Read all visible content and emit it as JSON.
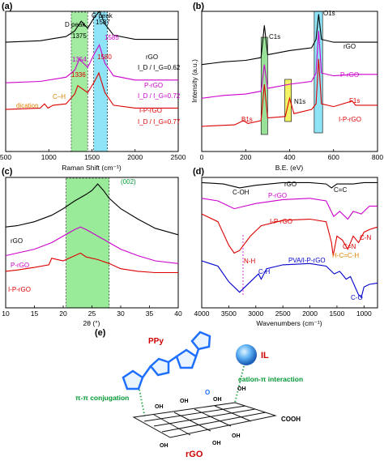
{
  "chart_data": [
    {
      "panel": "(a)",
      "type": "line",
      "xlabel": "Raman Shift (cm⁻¹)",
      "ylabel": "",
      "xlim": [
        500,
        2500
      ],
      "xticks": [
        500,
        1000,
        1500,
        2000,
        2500
      ],
      "series": [
        {
          "name": "rGO",
          "color": "#000000",
          "x": [
            500,
            900,
            1200,
            1300,
            1375,
            1450,
            1520,
            1587,
            1650,
            1750,
            2000,
            2500
          ],
          "y": [
            0.78,
            0.79,
            0.82,
            0.86,
            0.93,
            0.88,
            0.95,
            1.0,
            0.91,
            0.83,
            0.8,
            0.8
          ]
        },
        {
          "name": "P-rGO",
          "color": "#cc00cc",
          "x": [
            500,
            900,
            1200,
            1300,
            1354,
            1450,
            1530,
            1585,
            1650,
            1750,
            2000,
            2500
          ],
          "y": [
            0.49,
            0.5,
            0.53,
            0.58,
            0.66,
            0.6,
            0.7,
            0.76,
            0.63,
            0.54,
            0.51,
            0.51
          ]
        },
        {
          "name": "I-P-rGO",
          "color": "#dd0000",
          "x": [
            500,
            900,
            950,
            990,
            1050,
            1200,
            1300,
            1336,
            1450,
            1530,
            1580,
            1650,
            1750,
            2000,
            2500
          ],
          "y": [
            0.3,
            0.31,
            0.34,
            0.31,
            0.33,
            0.34,
            0.41,
            0.47,
            0.42,
            0.5,
            0.56,
            0.42,
            0.33,
            0.31,
            0.31
          ]
        }
      ],
      "series_labels": [
        "rGO",
        "P-rGO",
        "I-P-rGO"
      ],
      "ratio_labels": [
        "I_D / I_G=0.62",
        "I_D / I_G=0.72",
        "I_D / I_G=0.77"
      ],
      "annotations": [
        "D peak",
        "G peak",
        "1375",
        "1587",
        "1354",
        "1585",
        "1336",
        "1580",
        "C–H",
        "dication"
      ],
      "highlight_regions": [
        {
          "x": [
            1260,
            1450
          ],
          "color": "#55dd55"
        },
        {
          "x": [
            1520,
            1680
          ],
          "color": "#33ccee"
        }
      ]
    },
    {
      "panel": "(b)",
      "type": "line",
      "xlabel": "B.E. (eV)",
      "ylabel": "Intensity (a.u.)",
      "xlim": [
        0,
        800
      ],
      "xticks": [
        0,
        200,
        400,
        600,
        800
      ],
      "series": [
        {
          "name": "rGO",
          "color": "#000000",
          "x": [
            0,
            50,
            100,
            200,
            270,
            285,
            300,
            400,
            500,
            520,
            532,
            545,
            600,
            700,
            800
          ],
          "y": [
            0.62,
            0.63,
            0.64,
            0.65,
            0.67,
            0.9,
            0.69,
            0.72,
            0.74,
            0.8,
            0.98,
            0.8,
            0.78,
            0.78,
            0.78
          ]
        },
        {
          "name": "P-rGO",
          "color": "#cc00cc",
          "x": [
            0,
            50,
            100,
            200,
            270,
            285,
            300,
            400,
            500,
            520,
            532,
            545,
            600,
            700,
            800
          ],
          "y": [
            0.38,
            0.39,
            0.4,
            0.41,
            0.43,
            0.62,
            0.45,
            0.48,
            0.5,
            0.56,
            0.86,
            0.56,
            0.54,
            0.55,
            0.55
          ]
        },
        {
          "name": "I-P-rGO",
          "color": "#dd0000",
          "x": [
            0,
            150,
            190,
            210,
            270,
            285,
            300,
            380,
            400,
            420,
            500,
            520,
            532,
            545,
            600,
            685,
            700,
            800
          ],
          "y": [
            0.18,
            0.19,
            0.22,
            0.2,
            0.22,
            0.48,
            0.24,
            0.25,
            0.38,
            0.27,
            0.3,
            0.34,
            0.66,
            0.34,
            0.32,
            0.36,
            0.33,
            0.33
          ]
        }
      ],
      "series_labels": [
        "rGO",
        "P-rGO",
        "I-P-rGO"
      ],
      "annotations": [
        "C1s",
        "O1s",
        "N1s",
        "B1s",
        "F1s"
      ],
      "highlight_regions": [
        {
          "x": [
            270,
            300
          ],
          "color": "#55cc55"
        },
        {
          "x": [
            378,
            408
          ],
          "color": "#eeee33"
        },
        {
          "x": [
            512,
            550
          ],
          "color": "#33ccee"
        }
      ]
    },
    {
      "panel": "(c)",
      "type": "line",
      "xlabel": "2θ (°)",
      "ylabel": "",
      "xlim": [
        10,
        40
      ],
      "xticks": [
        10,
        15,
        20,
        25,
        30,
        35,
        40
      ],
      "series": [
        {
          "name": "rGO",
          "color": "#000000",
          "x": [
            10,
            12,
            15,
            18,
            20,
            22,
            24,
            25,
            26,
            27,
            28,
            30,
            33,
            36,
            40
          ],
          "y": [
            0.62,
            0.63,
            0.66,
            0.71,
            0.76,
            0.82,
            0.87,
            0.9,
            0.95,
            0.9,
            0.84,
            0.76,
            0.68,
            0.61,
            0.56
          ]
        },
        {
          "name": "P-rGO",
          "color": "#cc00cc",
          "x": [
            10,
            12,
            15,
            18,
            20,
            22,
            23,
            24,
            26,
            28,
            30,
            33,
            36,
            40
          ],
          "y": [
            0.4,
            0.42,
            0.45,
            0.5,
            0.55,
            0.6,
            0.62,
            0.6,
            0.55,
            0.5,
            0.45,
            0.4,
            0.36,
            0.34
          ]
        },
        {
          "name": "I-P-rGO",
          "color": "#dd0000",
          "x": [
            10,
            12,
            15,
            17.5,
            18,
            20,
            22,
            23,
            24,
            26,
            28,
            30,
            33,
            36,
            40
          ],
          "y": [
            0.28,
            0.29,
            0.31,
            0.33,
            0.38,
            0.36,
            0.4,
            0.42,
            0.39,
            0.37,
            0.34,
            0.3,
            0.28,
            0.27,
            0.27
          ]
        }
      ],
      "series_labels": [
        "rGO",
        "P-rGO",
        "I-P-rGO"
      ],
      "annotations": [
        "(002)"
      ],
      "highlight_regions": [
        {
          "x": [
            20.5,
            28
          ],
          "color": "#55dd55"
        }
      ]
    },
    {
      "panel": "(d)",
      "type": "line",
      "xlabel": "Wavenumbers (cm⁻¹)",
      "ylabel": "",
      "xlim": [
        4000,
        750
      ],
      "xticks": [
        4000,
        3500,
        3000,
        2500,
        2000,
        1500,
        1000
      ],
      "series": [
        {
          "name": "rGO",
          "color": "#000000",
          "x": [
            4000,
            3600,
            3300,
            3000,
            2500,
            2000,
            1700,
            1600,
            1500,
            1200,
            1000,
            750
          ],
          "y": [
            0.96,
            0.95,
            0.92,
            0.94,
            0.96,
            0.96,
            0.95,
            0.92,
            0.95,
            0.95,
            0.96,
            0.96
          ]
        },
        {
          "name": "P-rGO",
          "color": "#cc00cc",
          "x": [
            4000,
            3700,
            3400,
            3200,
            3000,
            2500,
            2000,
            1700,
            1560,
            1450,
            1300,
            1200,
            1050,
            900,
            750
          ],
          "y": [
            0.84,
            0.82,
            0.76,
            0.78,
            0.8,
            0.83,
            0.84,
            0.82,
            0.7,
            0.74,
            0.68,
            0.74,
            0.72,
            0.78,
            0.78
          ]
        },
        {
          "name": "I-P-rGO",
          "color": "#dd0000",
          "x": [
            4000,
            3700,
            3500,
            3400,
            3300,
            3100,
            2900,
            2500,
            2000,
            1700,
            1600,
            1570,
            1500,
            1400,
            1300,
            1200,
            1100,
            1000,
            900,
            750
          ],
          "y": [
            0.72,
            0.66,
            0.48,
            0.42,
            0.44,
            0.55,
            0.63,
            0.67,
            0.68,
            0.66,
            0.5,
            0.4,
            0.55,
            0.52,
            0.45,
            0.55,
            0.5,
            0.58,
            0.6,
            0.62
          ]
        },
        {
          "name": "PVA/I-P-rGO",
          "color": "#0000cc",
          "x": [
            4000,
            3700,
            3500,
            3300,
            3100,
            2950,
            2900,
            2800,
            2500,
            2000,
            1700,
            1550,
            1450,
            1330,
            1250,
            1100,
            1050,
            1000,
            900,
            750
          ],
          "y": [
            0.36,
            0.32,
            0.2,
            0.12,
            0.2,
            0.26,
            0.22,
            0.3,
            0.33,
            0.34,
            0.32,
            0.26,
            0.28,
            0.22,
            0.24,
            0.1,
            0.08,
            0.16,
            0.18,
            0.19
          ]
        }
      ],
      "series_labels": [
        "rGO",
        "P-rGO",
        "I-P-rGO",
        "PVA/I-P-rGO"
      ],
      "annotations": [
        "C-OH",
        "C=C",
        "N-H",
        "C-H",
        "C=N",
        "H-C=C-H",
        "C-N",
        "C-O"
      ]
    }
  ],
  "panel_e": {
    "label": "(e)",
    "ppy": "PPy",
    "il": "IL",
    "rgo": "rGO",
    "pi_pi": "π-π conjugation",
    "cation_pi": "cation-π interaction",
    "oh": "OH",
    "o": "O",
    "cooh": "COOH"
  },
  "colors": {
    "black": "#000000",
    "magenta": "#cc00cc",
    "red": "#dd0000",
    "blue": "#0000cc",
    "green": "#55dd55",
    "cyan": "#33ccee",
    "yellow": "#eeee33",
    "label_green": "#009933",
    "label_red": "#cc0000"
  }
}
